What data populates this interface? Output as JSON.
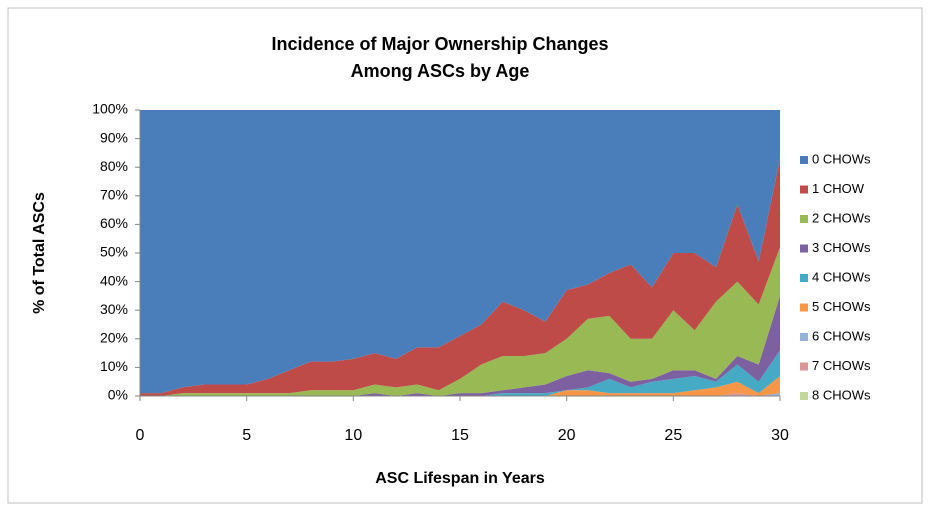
{
  "chart_data": {
    "type": "stacked_area",
    "title": [
      "Incidence of Major Ownership Changes",
      "Among ASCs by Age"
    ],
    "x_label": "ASC Lifespan in Years",
    "y_label": "% of Total ASCs",
    "x": [
      0,
      1,
      2,
      3,
      4,
      5,
      6,
      7,
      8,
      9,
      10,
      11,
      12,
      13,
      14,
      15,
      16,
      17,
      18,
      19,
      20,
      21,
      22,
      23,
      24,
      25,
      26,
      27,
      28,
      29,
      30
    ],
    "series": [
      {
        "name": "0 CHOWs",
        "color": "#4a7ebb",
        "values": [
          99,
          99,
          97,
          96,
          96,
          96,
          94,
          91,
          88,
          88,
          87,
          85,
          87,
          83,
          83,
          79,
          75,
          67,
          70,
          74,
          63,
          61,
          57,
          54,
          62,
          50,
          50,
          55,
          33,
          53,
          17
        ]
      },
      {
        "name": "1 CHOW",
        "color": "#be4b48",
        "values": [
          1,
          1,
          2,
          3,
          3,
          3,
          5,
          8,
          10,
          10,
          11,
          11,
          10,
          13,
          15,
          15,
          14,
          19,
          16,
          11,
          17,
          12,
          15,
          26,
          18,
          20,
          27,
          12,
          27,
          15,
          31
        ]
      },
      {
        "name": "2 CHOWs",
        "color": "#98b954",
        "values": [
          0,
          0,
          1,
          1,
          1,
          1,
          1,
          1,
          2,
          2,
          2,
          3,
          3,
          3,
          2,
          5,
          10,
          12,
          11,
          11,
          13,
          18,
          20,
          15,
          14,
          21,
          14,
          27,
          26,
          21,
          17
        ]
      },
      {
        "name": "3 CHOWs",
        "color": "#7d60a0",
        "values": [
          0,
          0,
          0,
          0,
          0,
          0,
          0,
          0,
          0,
          0,
          0,
          1,
          0,
          1,
          0,
          1,
          1,
          1,
          2,
          3,
          5,
          6,
          2,
          2,
          1,
          3,
          2,
          1,
          3,
          6,
          19
        ]
      },
      {
        "name": "4 CHOWs",
        "color": "#46aac5",
        "values": [
          0,
          0,
          0,
          0,
          0,
          0,
          0,
          0,
          0,
          0,
          0,
          0,
          0,
          0,
          0,
          0,
          0,
          1,
          1,
          1,
          0,
          1,
          5,
          2,
          4,
          5,
          5,
          2,
          6,
          4,
          9
        ]
      },
      {
        "name": "5 CHOWs",
        "color": "#f79646",
        "values": [
          0,
          0,
          0,
          0,
          0,
          0,
          0,
          0,
          0,
          0,
          0,
          0,
          0,
          0,
          0,
          0,
          0,
          0,
          0,
          0,
          2,
          2,
          1,
          1,
          1,
          1,
          2,
          3,
          4,
          1,
          6
        ]
      },
      {
        "name": "6 CHOWs",
        "color": "#95b3d7",
        "values": [
          0,
          0,
          0,
          0,
          0,
          0,
          0,
          0,
          0,
          0,
          0,
          0,
          0,
          0,
          0,
          0,
          0,
          0,
          0,
          0,
          0,
          0,
          0,
          0,
          0,
          0,
          0,
          0,
          0,
          0,
          1
        ]
      },
      {
        "name": "7 CHOWs",
        "color": "#d99694",
        "values": [
          0,
          0,
          0,
          0,
          0,
          0,
          0,
          0,
          0,
          0,
          0,
          0,
          0,
          0,
          0,
          0,
          0,
          0,
          0,
          0,
          0,
          0,
          0,
          0,
          0,
          0,
          0,
          0,
          1,
          0,
          0
        ]
      },
      {
        "name": "8 CHOWs",
        "color": "#c3d69b",
        "values": [
          0,
          0,
          0,
          0,
          0,
          0,
          0,
          0,
          0,
          0,
          0,
          0,
          0,
          0,
          0,
          0,
          0,
          0,
          0,
          0,
          0,
          0,
          0,
          0,
          0,
          0,
          0,
          0,
          0,
          0,
          0
        ]
      }
    ],
    "xlim": [
      0,
      30
    ],
    "xticks": [
      0,
      5,
      10,
      15,
      20,
      25,
      30
    ],
    "ylim": [
      0,
      100
    ],
    "yticks": [
      {
        "value": 0,
        "label": "0%"
      },
      {
        "value": 10,
        "label": "10%"
      },
      {
        "value": 20,
        "label": "20%"
      },
      {
        "value": 30,
        "label": "30%"
      },
      {
        "value": 40,
        "label": "40%"
      },
      {
        "value": 50,
        "label": "50%"
      },
      {
        "value": 60,
        "label": "60%"
      },
      {
        "value": 70,
        "label": "70%"
      },
      {
        "value": 80,
        "label": "80%"
      },
      {
        "value": 90,
        "label": "90%"
      },
      {
        "value": 100,
        "label": "100%"
      }
    ],
    "legend": "right"
  }
}
